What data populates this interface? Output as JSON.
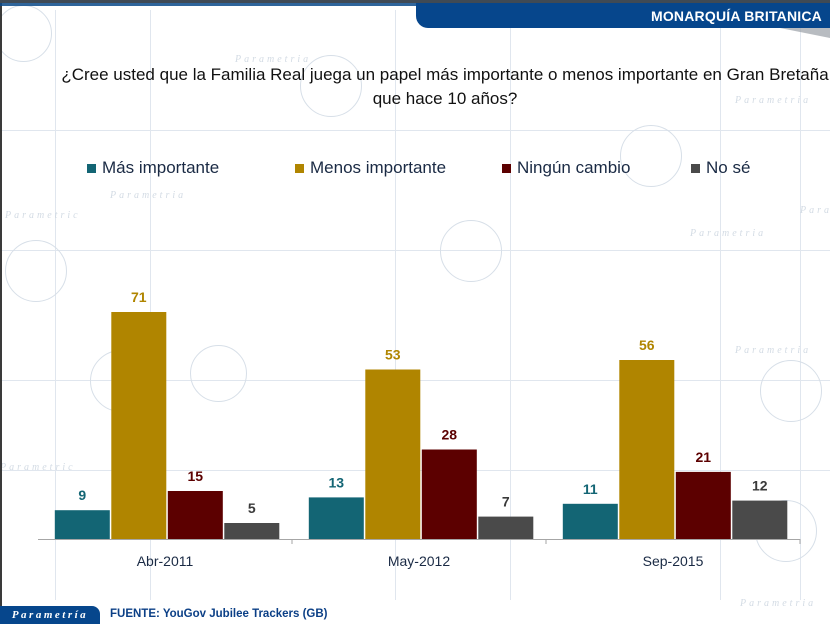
{
  "header": {
    "banner_title": "MONARQUÍA BRITANICA"
  },
  "question": {
    "line1": "¿Cree usted que la Familia Real juega un papel más importante o menos importante en Gran Bretaña",
    "line2": "que hace 10 años?"
  },
  "legend": [
    {
      "label": "Más importante",
      "color": "#136574"
    },
    {
      "label": "Menos importante",
      "color": "#b08500"
    },
    {
      "label": "Ningún cambio",
      "color": "#5c0000"
    },
    {
      "label": "No sé",
      "color": "#4a4a4a"
    }
  ],
  "chart_data": {
    "type": "bar",
    "title": "¿Cree usted que la Familia Real juega un papel más importante o menos importante en Gran Bretaña que hace 10 años?",
    "categories": [
      "Abr-2011",
      "May-2012",
      "Sep-2015"
    ],
    "series": [
      {
        "name": "Más importante",
        "values": [
          9,
          13,
          11
        ],
        "color": "#136574"
      },
      {
        "name": "Menos importante",
        "values": [
          71,
          53,
          56
        ],
        "color": "#b08500"
      },
      {
        "name": "Ningún cambio",
        "values": [
          15,
          28,
          21
        ],
        "color": "#5c0000"
      },
      {
        "name": "No sé",
        "values": [
          5,
          7,
          12
        ],
        "color": "#4a4a4a"
      }
    ],
    "xlabel": "",
    "ylabel": "",
    "ylim": [
      0,
      80
    ],
    "grid": false,
    "legend_position": "top",
    "data_labels": true
  },
  "footer": {
    "brand": "Parametría",
    "source": "FUENTE: YouGov Jubilee Trackers (GB)"
  }
}
